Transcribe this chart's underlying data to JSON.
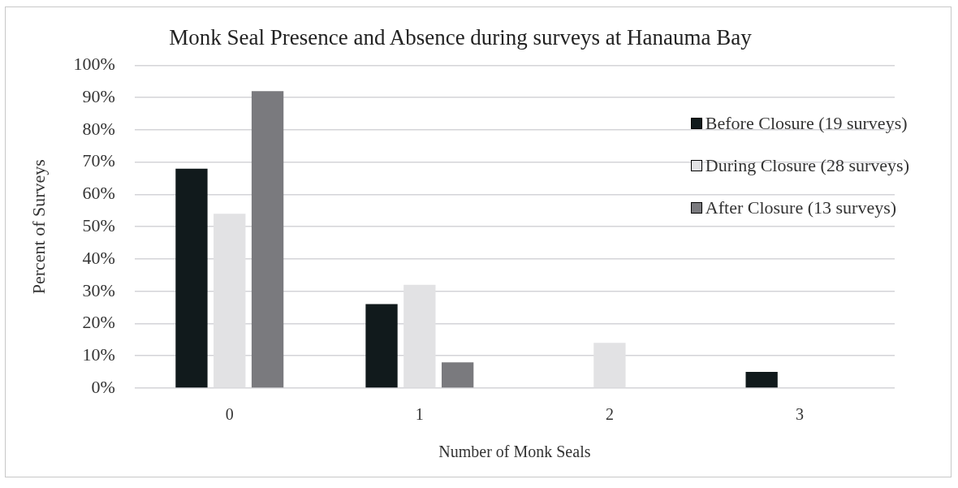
{
  "chart_data": {
    "type": "bar",
    "title": "Monk Seal Presence and Absence during surveys at Hanauma Bay",
    "xlabel": "Number of Monk Seals",
    "ylabel": "Percent of Surveys",
    "categories": [
      "0",
      "1",
      "2",
      "3"
    ],
    "series": [
      {
        "name": "Before Closure (19 surveys)",
        "color": "#111a1c",
        "values": [
          68,
          26,
          0,
          5
        ]
      },
      {
        "name": "During Closure (28 surveys)",
        "color": "#e2e2e4",
        "values": [
          54,
          32,
          14,
          0
        ]
      },
      {
        "name": "After Closure (13 surveys)",
        "color": "#7a7a7e",
        "values": [
          92,
          8,
          0,
          0
        ]
      }
    ],
    "ylim": [
      0,
      100
    ],
    "yticks": [
      {
        "value": 0,
        "label": "0%"
      },
      {
        "value": 10,
        "label": "10%"
      },
      {
        "value": 20,
        "label": "20%"
      },
      {
        "value": 30,
        "label": "30%"
      },
      {
        "value": 40,
        "label": "40%"
      },
      {
        "value": 50,
        "label": "50%"
      },
      {
        "value": 60,
        "label": "60%"
      },
      {
        "value": 70,
        "label": "70%"
      },
      {
        "value": 80,
        "label": "80%"
      },
      {
        "value": 90,
        "label": "90%"
      },
      {
        "value": 100,
        "label": "100%"
      }
    ],
    "grid": "y",
    "legend": "top right"
  }
}
